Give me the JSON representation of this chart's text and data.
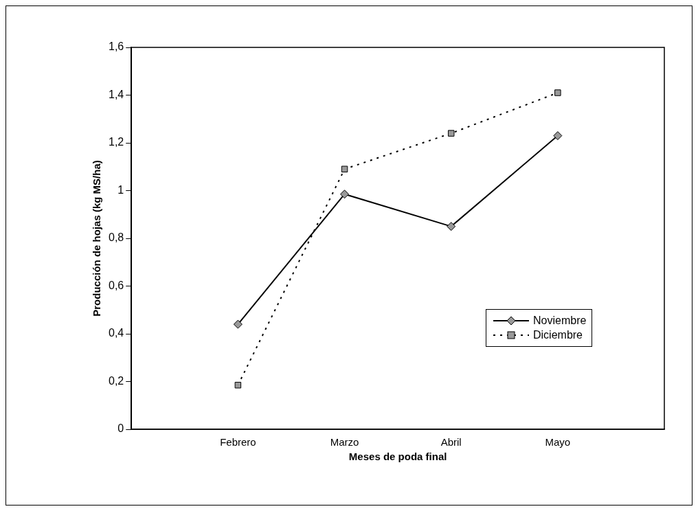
{
  "chart_data": {
    "type": "line",
    "xlabel": "Meses de poda final",
    "ylabel": "Producción de hojas (kg MS/ha)",
    "categories": [
      null,
      "Febrero",
      "Marzo",
      "Abril",
      "Mayo",
      null
    ],
    "series": [
      {
        "name": "Noviembre",
        "color": "#000000",
        "values": [
          null,
          0.44,
          0.985,
          0.85,
          1.23,
          null
        ],
        "marker": "diamond",
        "line_style": "solid"
      },
      {
        "name": "Diciembre",
        "color": "#000000",
        "values": [
          null,
          0.185,
          1.09,
          1.24,
          1.41,
          null
        ],
        "marker": "square",
        "line_style": "dotted"
      }
    ],
    "ylim": [
      0,
      1.6
    ],
    "yticks": [
      {
        "value": 0,
        "label": "0"
      },
      {
        "value": 0.2,
        "label": "0,2"
      },
      {
        "value": 0.4,
        "label": "0,4"
      },
      {
        "value": 0.6,
        "label": "0,6"
      },
      {
        "value": 0.8,
        "label": "0,8"
      },
      {
        "value": 1,
        "label": "1"
      },
      {
        "value": 1.2,
        "label": "1,2"
      },
      {
        "value": 1.4,
        "label": "1,4"
      },
      {
        "value": 1.6,
        "label": "1,6"
      }
    ],
    "grid": false,
    "legend": "bottom right"
  }
}
